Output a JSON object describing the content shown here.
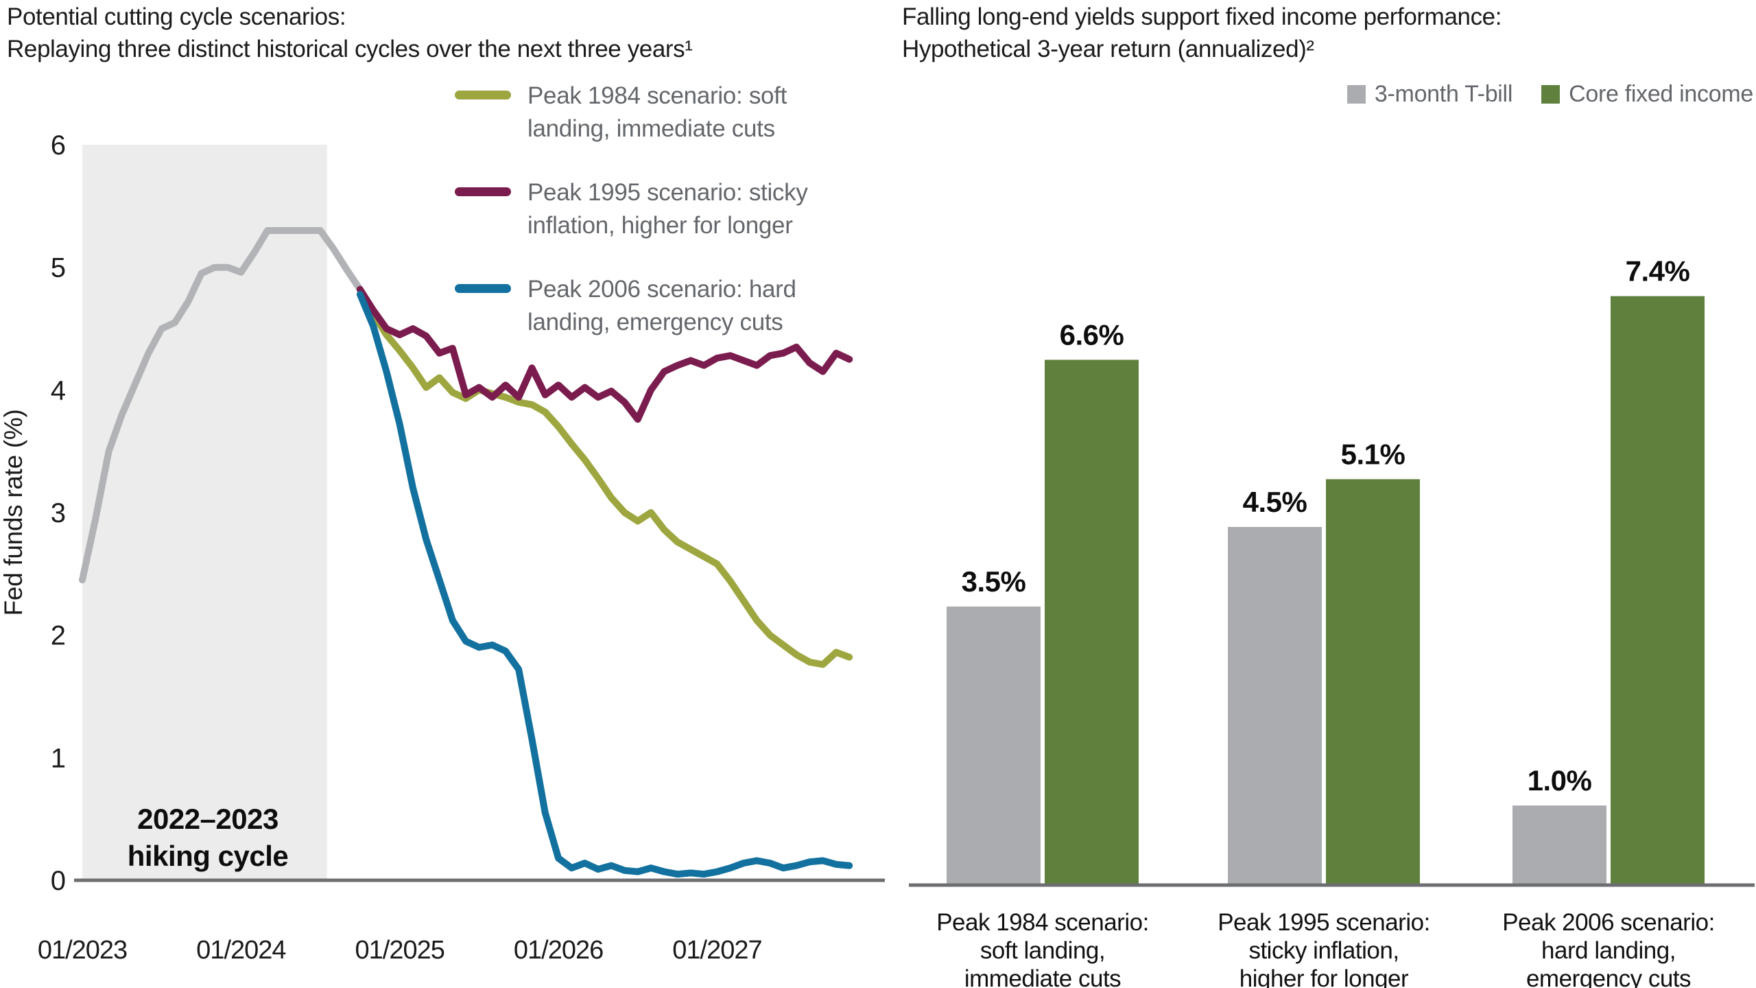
{
  "page": {
    "background": "#ffffff",
    "axis_color": "#6d6e71",
    "shading_color": "#ececec"
  },
  "left_chart": {
    "title_line1": "Potential cutting cycle scenarios:",
    "title_line2": "Replaying three distinct historical cycles over the next three years¹",
    "y_axis_label": "Fed funds rate (%)",
    "shading_label": "2022–2023\nhiking cycle",
    "legend": [
      {
        "label": "Peak 1984 scenario: soft\nlanding, immediate cuts",
        "color": "#9da63f"
      },
      {
        "label": "Peak 1995 scenario: sticky\ninflation, higher for longer",
        "color": "#7b1c4e"
      },
      {
        "label": "Peak 2006 scenario: hard\nlanding, emergency cuts",
        "color": "#13719f"
      }
    ]
  },
  "right_chart": {
    "title_line1": "Falling long-end yields support fixed income performance:",
    "title_line2": "Hypothetical 3-year return (annualized)²",
    "legend": [
      {
        "label": "3-month T-bill",
        "color": "#aaacb0"
      },
      {
        "label": "Core fixed income",
        "color": "#5f813d"
      }
    ]
  },
  "chart_data": [
    {
      "type": "line",
      "title": "Potential cutting cycle scenarios: Replaying three distinct historical cycles over the next three years",
      "ylabel": "Fed funds rate (%)",
      "ylim": [
        0,
        6
      ],
      "yticks": [
        0,
        1,
        2,
        3,
        4,
        5,
        6
      ],
      "x_unit": "months since 2023-01",
      "xticks": [
        {
          "month": 0,
          "label": "01/2023"
        },
        {
          "month": 12,
          "label": "01/2024"
        },
        {
          "month": 24,
          "label": "01/2025"
        },
        {
          "month": 36,
          "label": "01/2026"
        },
        {
          "month": 48,
          "label": "01/2027"
        }
      ],
      "shaded_region": {
        "start_month": 0,
        "end_month": 18.5,
        "label": "2022–2023 hiking cycle"
      },
      "series": [
        {
          "name": "Historical fed funds rate (2022–2023 hiking cycle)",
          "color": "#b1b3b6",
          "start_month": 0,
          "values": [
            2.45,
            2.95,
            3.5,
            3.8,
            4.05,
            4.3,
            4.5,
            4.55,
            4.72,
            4.95,
            5.0,
            5.0,
            4.96,
            5.12,
            5.3,
            5.3,
            5.3,
            5.3,
            5.3,
            5.15,
            4.98,
            4.82
          ]
        },
        {
          "name": "Peak 1984 scenario: soft landing, immediate cuts",
          "color": "#9da63f",
          "start_month": 21,
          "values": [
            4.82,
            4.62,
            4.45,
            4.32,
            4.18,
            4.02,
            4.1,
            3.98,
            3.93,
            4.0,
            3.97,
            3.94,
            3.9,
            3.88,
            3.82,
            3.7,
            3.56,
            3.43,
            3.28,
            3.12,
            3.0,
            2.93,
            3.0,
            2.86,
            2.76,
            2.7,
            2.64,
            2.58,
            2.44,
            2.28,
            2.12,
            2.0,
            1.92,
            1.84,
            1.78,
            1.76,
            1.86,
            1.82
          ]
        },
        {
          "name": "Peak 1995 scenario: sticky inflation, higher for longer",
          "color": "#7b1c4e",
          "start_month": 21,
          "values": [
            4.82,
            4.65,
            4.5,
            4.45,
            4.5,
            4.44,
            4.3,
            4.34,
            3.96,
            4.02,
            3.94,
            4.04,
            3.94,
            4.18,
            3.96,
            4.04,
            3.94,
            4.02,
            3.94,
            3.99,
            3.9,
            3.76,
            4.0,
            4.15,
            4.2,
            4.24,
            4.2,
            4.26,
            4.28,
            4.24,
            4.2,
            4.28,
            4.3,
            4.35,
            4.22,
            4.15,
            4.3,
            4.25
          ]
        },
        {
          "name": "Peak 2006 scenario: hard landing, emergency cuts",
          "color": "#13719f",
          "start_month": 21,
          "values": [
            4.78,
            4.52,
            4.15,
            3.72,
            3.2,
            2.78,
            2.45,
            2.12,
            1.95,
            1.9,
            1.92,
            1.87,
            1.72,
            1.15,
            0.55,
            0.18,
            0.1,
            0.14,
            0.09,
            0.12,
            0.08,
            0.07,
            0.1,
            0.07,
            0.05,
            0.06,
            0.05,
            0.07,
            0.1,
            0.14,
            0.16,
            0.14,
            0.1,
            0.12,
            0.15,
            0.16,
            0.13,
            0.12
          ]
        }
      ]
    },
    {
      "type": "bar",
      "title": "Falling long-end yields support fixed income performance: Hypothetical 3-year return (annualized)",
      "ylim": [
        0,
        8
      ],
      "categories": [
        [
          "Peak 1984 scenario:",
          "soft landing,",
          "immediate cuts"
        ],
        [
          "Peak 1995 scenario:",
          "sticky inflation,",
          "higher for longer"
        ],
        [
          "Peak 2006 scenario:",
          "hard landing,",
          "emergency cuts"
        ]
      ],
      "series": [
        {
          "name": "3-month T-bill",
          "color": "#aaacb0",
          "values": [
            3.5,
            4.5,
            1.0
          ]
        },
        {
          "name": "Core fixed income",
          "color": "#5f813d",
          "values": [
            6.6,
            5.1,
            7.4
          ]
        }
      ],
      "value_labels": [
        [
          "3.5%",
          "6.6%"
        ],
        [
          "4.5%",
          "5.1%"
        ],
        [
          "1.0%",
          "7.4%"
        ]
      ],
      "legend_position": "top-right",
      "grid": false
    }
  ]
}
